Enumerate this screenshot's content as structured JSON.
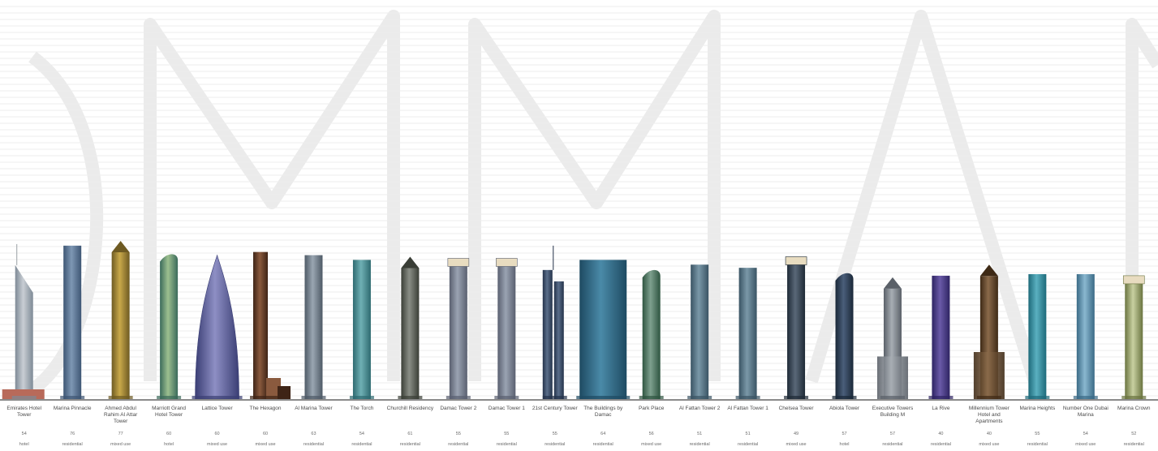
{
  "diagram": {
    "towers": [
      {
        "name": "Emirates Hotel Tower",
        "floors": "54",
        "use": "hotel",
        "color": "#c9ced4",
        "accent": "#7e8a96",
        "shape": "emirates",
        "height": 0.98
      },
      {
        "name": "Marina Pinnacle",
        "floors": "76",
        "use": "residential",
        "color": "#7e97b4",
        "accent": "#3e5674",
        "shape": "slab",
        "height": 0.97
      },
      {
        "name": "Ahmed Abdul Rahim Al Attar Tower",
        "floors": "77",
        "use": "mixed use",
        "color": "#c9a94a",
        "accent": "#6e5a22",
        "shape": "spire",
        "height": 1.0
      },
      {
        "name": "Marriott Grand Hotel Tower",
        "floors": "60",
        "use": "hotel",
        "color": "#9cbf8f",
        "accent": "#3a6a5a",
        "shape": "curve",
        "height": 0.93
      },
      {
        "name": "Lattice Tower",
        "floors": "60",
        "use": "mixed use",
        "color": "#8e8fc4",
        "accent": "#3a3e74",
        "shape": "sail",
        "height": 0.91
      },
      {
        "name": "The Hexagon",
        "floors": "60",
        "use": "mixed use",
        "color": "#8a5a3e",
        "accent": "#3e2416",
        "shape": "stepped",
        "height": 0.93
      },
      {
        "name": "Al Marina Tower",
        "floors": "63",
        "use": "residential",
        "color": "#9aa6b2",
        "accent": "#4e5a66",
        "shape": "slab",
        "height": 0.91
      },
      {
        "name": "The Torch",
        "floors": "54",
        "use": "residential",
        "color": "#6fb0b4",
        "accent": "#2e6a70",
        "shape": "slab",
        "height": 0.88
      },
      {
        "name": "Churchill Residency",
        "floors": "61",
        "use": "residential",
        "color": "#8a8e86",
        "accent": "#3a3e36",
        "shape": "spire",
        "height": 0.9
      },
      {
        "name": "Damac Tower 2",
        "floors": "55",
        "use": "residential",
        "color": "#9aa3b2",
        "accent": "#5a6070",
        "shape": "crown",
        "height": 0.89
      },
      {
        "name": "Damac Tower 1",
        "floors": "55",
        "use": "residential",
        "color": "#9aa3b2",
        "accent": "#5a6070",
        "shape": "crown",
        "height": 0.89
      },
      {
        "name": "21st Century Tower",
        "floors": "55",
        "use": "residential",
        "color": "#5a6e8a",
        "accent": "#24324a",
        "shape": "twin",
        "height": 0.97
      },
      {
        "name": "The Buildings by Damac",
        "floors": "64",
        "use": "residential",
        "color": "#4a8aa8",
        "accent": "#1e4a62",
        "shape": "wide",
        "height": 0.88
      },
      {
        "name": "Park Place",
        "floors": "56",
        "use": "mixed use",
        "color": "#7ea08e",
        "accent": "#2e5440",
        "shape": "curve",
        "height": 0.83
      },
      {
        "name": "Al Fattan Tower 2",
        "floors": "51",
        "use": "residential",
        "color": "#7a98a8",
        "accent": "#3a5464",
        "shape": "slab",
        "height": 0.85
      },
      {
        "name": "Al Fattan Tower 1",
        "floors": "51",
        "use": "residential",
        "color": "#7a98a8",
        "accent": "#3a5464",
        "shape": "slab",
        "height": 0.83
      },
      {
        "name": "Chelsea Tower",
        "floors": "49",
        "use": "mixed use",
        "color": "#5a6878",
        "accent": "#1e2a36",
        "shape": "crown",
        "height": 0.9
      },
      {
        "name": "Abiola Tower",
        "floors": "57",
        "use": "hotel",
        "color": "#4a5e7a",
        "accent": "#1a2838",
        "shape": "curve",
        "height": 0.81
      },
      {
        "name": "Executive Towers Building M",
        "floors": "57",
        "use": "residential",
        "color": "#a8aeb4",
        "accent": "#5a6068",
        "shape": "stepped-spire",
        "height": 0.77
      },
      {
        "name": "La Rive",
        "floors": "40",
        "use": "residential",
        "color": "#6a5aa8",
        "accent": "#2e2462",
        "shape": "slab",
        "height": 0.78
      },
      {
        "name": "Millennium Tower Hotel and Apartments",
        "floors": "40",
        "use": "mixed use",
        "color": "#8a6a4a",
        "accent": "#3e2a16",
        "shape": "stepped-spire",
        "height": 0.85
      },
      {
        "name": "Marina Heights",
        "floors": "55",
        "use": "residential",
        "color": "#5ab0c0",
        "accent": "#1e6a7a",
        "shape": "slab",
        "height": 0.79
      },
      {
        "name": "Number One Dubai Marina",
        "floors": "54",
        "use": "mixed use",
        "color": "#8ab8d0",
        "accent": "#3a6a86",
        "shape": "slab",
        "height": 0.79
      },
      {
        "name": "Marina Crown",
        "floors": "52",
        "use": "residential",
        "color": "#c8d0a0",
        "accent": "#6a7440",
        "shape": "crown",
        "height": 0.78
      }
    ]
  }
}
